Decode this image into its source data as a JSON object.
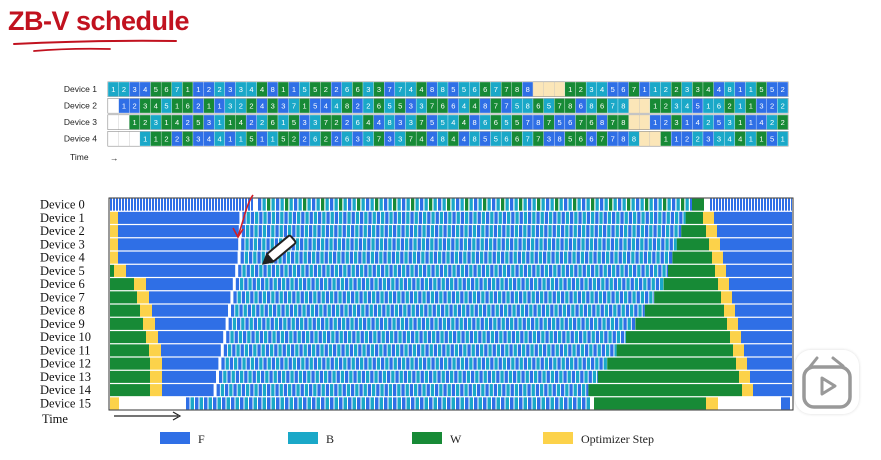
{
  "title": "ZB-V schedule",
  "colors": {
    "F": "#2f6fe6",
    "B": "#1aa8c8",
    "W": "#178a36",
    "optimizer": "#fcd24a",
    "idle": "#fbe6b8",
    "title": "#c1121f",
    "annotation": "#d21f26"
  },
  "top_chart": {
    "devices": [
      "Device 1",
      "Device 2",
      "Device 3",
      "Device 4"
    ],
    "time_label": "Time",
    "time_arrow": "→",
    "rows": [
      [
        "1",
        "2",
        "3",
        "4",
        "5",
        "6",
        "7",
        "1",
        "1",
        "2",
        "2",
        "3",
        "3",
        "4",
        "4",
        "8",
        "1",
        "1",
        "5",
        "5",
        "2",
        "2",
        "6",
        "6",
        "3",
        "3",
        "7",
        "7",
        "4",
        "4",
        "8",
        "8",
        "5",
        "5",
        "6",
        "6",
        "7",
        "7",
        "8",
        "8",
        "",
        "",
        "",
        "1",
        "2",
        "3",
        "4",
        "5",
        "6",
        "7",
        "1",
        "1",
        "2",
        "2",
        "3",
        "3",
        "4",
        "4",
        "8",
        "1",
        "1",
        "5",
        "5",
        "2"
      ],
      [
        "",
        "1",
        "2",
        "3",
        "4",
        "5",
        "1",
        "6",
        "2",
        "1",
        "1",
        "3",
        "2",
        "2",
        "4",
        "3",
        "3",
        "7",
        "1",
        "5",
        "4",
        "4",
        "8",
        "2",
        "2",
        "6",
        "5",
        "5",
        "3",
        "3",
        "7",
        "6",
        "6",
        "4",
        "4",
        "8",
        "7",
        "7",
        "5",
        "8",
        "6",
        "5",
        "7",
        "8",
        "6",
        "8",
        "6",
        "7",
        "8",
        "",
        "",
        "1",
        "2",
        "3",
        "4",
        "5",
        "1",
        "6",
        "2",
        "1",
        "1",
        "3",
        "2",
        "2",
        "4",
        "3",
        "3"
      ],
      [
        "",
        "",
        "1",
        "2",
        "3",
        "1",
        "4",
        "2",
        "5",
        "3",
        "1",
        "1",
        "4",
        "2",
        "2",
        "6",
        "1",
        "5",
        "3",
        "3",
        "7",
        "2",
        "2",
        "6",
        "4",
        "4",
        "8",
        "3",
        "3",
        "7",
        "5",
        "5",
        "4",
        "4",
        "8",
        "6",
        "6",
        "5",
        "5",
        "7",
        "8",
        "7",
        "5",
        "6",
        "7",
        "6",
        "8",
        "7",
        "8",
        "",
        "",
        "1",
        "2",
        "3",
        "1",
        "4",
        "2",
        "5",
        "3",
        "1",
        "1",
        "4",
        "2",
        "2",
        "6",
        "1",
        "5"
      ],
      [
        "",
        "",
        "",
        "1",
        "1",
        "2",
        "2",
        "3",
        "3",
        "4",
        "4",
        "1",
        "1",
        "5",
        "1",
        "1",
        "5",
        "2",
        "2",
        "6",
        "2",
        "2",
        "6",
        "3",
        "3",
        "7",
        "3",
        "3",
        "7",
        "4",
        "4",
        "8",
        "4",
        "4",
        "8",
        "5",
        "5",
        "6",
        "6",
        "7",
        "7",
        "3",
        "8",
        "5",
        "6",
        "6",
        "7",
        "7",
        "8",
        "8",
        "",
        "",
        "1",
        "1",
        "2",
        "2",
        "3",
        "3",
        "4",
        "4",
        "1",
        "1",
        "5",
        "1",
        "1",
        "5",
        "2"
      ]
    ]
  },
  "bottom_chart": {
    "devices": [
      "Device 0",
      "Device 1",
      "Device 2",
      "Device 3",
      "Device 4",
      "Device 5",
      "Device 6",
      "Device 7",
      "Device 8",
      "Device 9",
      "Device 10",
      "Device 11",
      "Device 12",
      "Device 13",
      "Device 14",
      "Device 15"
    ],
    "time_label": "Time"
  },
  "legend": [
    {
      "key": "F",
      "label": "F",
      "color": "#2f6fe6"
    },
    {
      "key": "B",
      "label": "B",
      "color": "#1aa8c8"
    },
    {
      "key": "W",
      "label": "W",
      "color": "#178a36"
    },
    {
      "key": "optimizer",
      "label": "Optimizer Step",
      "color": "#fcd24a"
    }
  ],
  "video_control": {
    "icon": "play-icon"
  }
}
